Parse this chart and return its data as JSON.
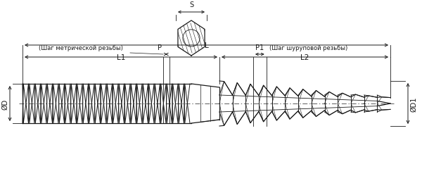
{
  "bg_color": "#ffffff",
  "line_color": "#1a1a1a",
  "dim_color": "#1a1a1a",
  "figsize": [
    6.0,
    2.51
  ],
  "dpi": 100,
  "labels": {
    "S": "S",
    "P": "P",
    "P1": "P1",
    "D": "ØD",
    "D1": "ØD1",
    "L": "L",
    "L1": "L1",
    "L2": "L2",
    "metric_thread": "(Шаг метрической резьбы)",
    "screw_thread": "(Шаг шуруповой резьбы)"
  }
}
